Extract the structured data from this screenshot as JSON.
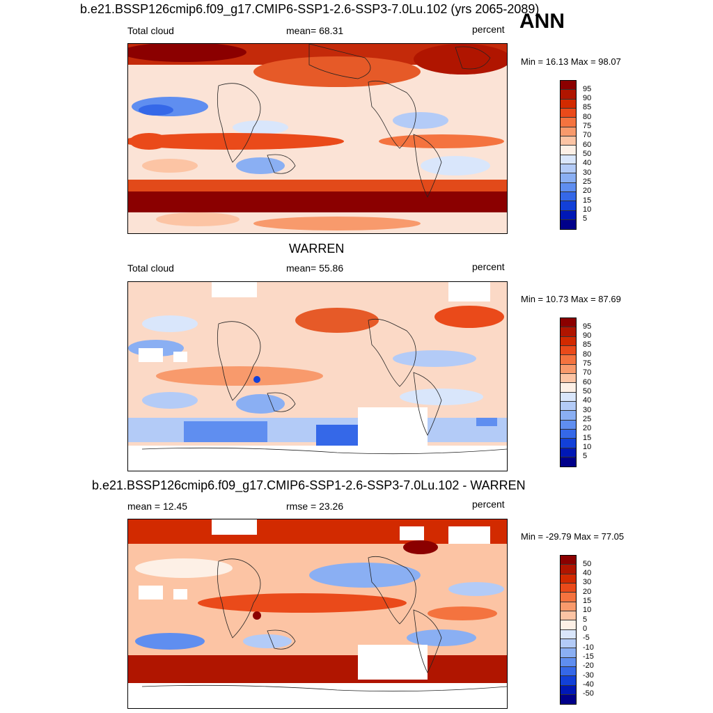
{
  "header": {
    "case_title": "b.e21.BSSP126cmip6.f09_g17.CMIP6-SSP1-2.6-SSP3-7.0Lu.102 (yrs 2065-2089)",
    "season": "ANN"
  },
  "panels": [
    {
      "title": "",
      "left_label": "Total cloud",
      "center_label": "mean=  68.31",
      "right_label": "percent",
      "minmax": "Min =  16.13 Max =  98.07",
      "colorbar_labels": [
        "95",
        "90",
        "85",
        "80",
        "75",
        "70",
        "60",
        "50",
        "40",
        "30",
        "25",
        "20",
        "15",
        "10",
        "5"
      ]
    },
    {
      "title": "WARREN",
      "left_label": "Total cloud",
      "center_label": "mean=  55.86",
      "right_label": "percent",
      "minmax": "Min =  10.73 Max =  87.69",
      "colorbar_labels": [
        "95",
        "90",
        "85",
        "80",
        "75",
        "70",
        "60",
        "50",
        "40",
        "30",
        "25",
        "20",
        "15",
        "10",
        "5"
      ]
    },
    {
      "title": "b.e21.BSSP126cmip6.f09_g17.CMIP6-SSP1-2.6-SSP3-7.0Lu.102 - WARREN",
      "left_label": "mean =  12.45",
      "center_label": "rmse =  23.26",
      "right_label": "percent",
      "minmax": "Min = -29.79 Max =  77.05",
      "colorbar_labels": [
        "50",
        "40",
        "30",
        "20",
        "15",
        "10",
        "5",
        "0",
        "-5",
        "-10",
        "-15",
        "-20",
        "-30",
        "-40",
        "-50"
      ]
    }
  ],
  "colorbar_colors": [
    "#8b0000",
    "#b01500",
    "#d22a00",
    "#ea4a1a",
    "#f4733f",
    "#f89a6c",
    "#fcc4a4",
    "#fdf0e6",
    "#d9e6fb",
    "#b3cbf7",
    "#8aaff3",
    "#5f8ef0",
    "#3568e8",
    "#1240d8",
    "#0018b6",
    "#00008a"
  ]
}
